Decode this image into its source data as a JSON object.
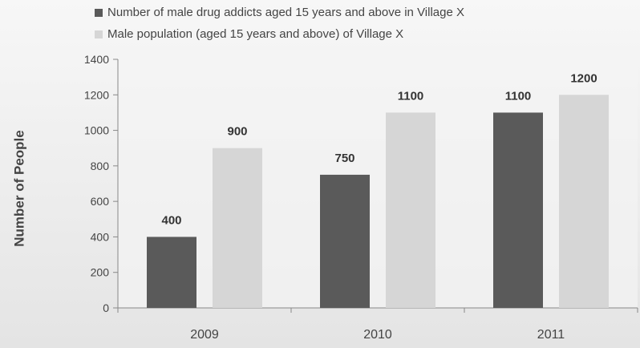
{
  "chart_data": {
    "type": "bar",
    "title": "",
    "xlabel": "",
    "ylabel": "Number of People",
    "ylim": [
      0,
      1400
    ],
    "yticks": [
      0,
      200,
      400,
      600,
      800,
      1000,
      1200,
      1400
    ],
    "categories": [
      "2009",
      "2010",
      "2011"
    ],
    "series": [
      {
        "name": "Number of male drug addicts aged 15 years and above in Village X",
        "values": [
          400,
          750,
          1100
        ],
        "color": "#5a5a5a"
      },
      {
        "name": "Male population  (aged 15 years and above) of Village X",
        "values": [
          900,
          1100,
          1200
        ],
        "color": "#d6d6d6"
      }
    ],
    "data_labels": [
      [
        "400",
        "750",
        "1100"
      ],
      [
        "900",
        "1100",
        "1200"
      ]
    ],
    "legend_position": "top",
    "grid": false
  }
}
